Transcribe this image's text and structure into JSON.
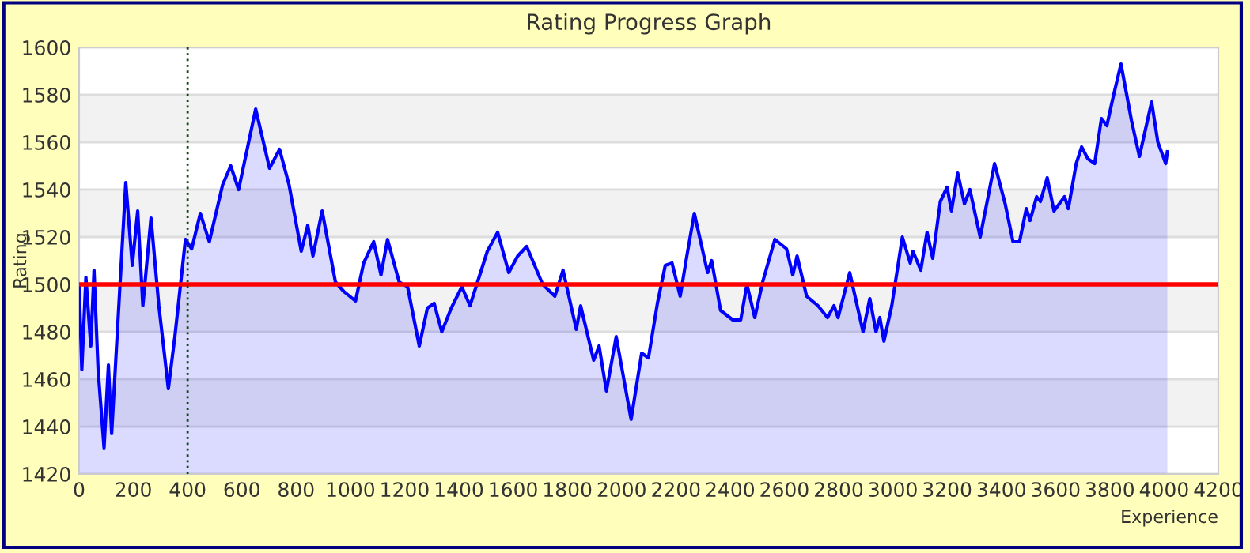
{
  "chart_data": {
    "type": "area",
    "title": "Rating Progress Graph",
    "xlabel": "Experience",
    "ylabel": "Rating",
    "series": [
      {
        "color": "#0000ff",
        "x": [
          0,
          10,
          25,
          43,
          55,
          70,
          92,
          108,
          120,
          141,
          172,
          196,
          216,
          235,
          265,
          294,
          329,
          353,
          392,
          415,
          447,
          480,
          529,
          559,
          588,
          651,
          702,
          739,
          774,
          819,
          843,
          862,
          896,
          945,
          976,
          1019,
          1049,
          1086,
          1113,
          1137,
          1180,
          1211,
          1254,
          1284,
          1309,
          1337,
          1372,
          1411,
          1441,
          1505,
          1543,
          1584,
          1617,
          1650,
          1709,
          1754,
          1784,
          1833,
          1849,
          1897,
          1917,
          1944,
          1980,
          2035,
          2074,
          2099,
          2132,
          2161,
          2186,
          2216,
          2239,
          2268,
          2317,
          2332,
          2365,
          2410,
          2439,
          2462,
          2491,
          2520,
          2565,
          2608,
          2631,
          2647,
          2682,
          2724,
          2759,
          2783,
          2798,
          2841,
          2890,
          2915,
          2938,
          2952,
          2967,
          2996,
          3035,
          3064,
          3074,
          3103,
          3126,
          3147,
          3175,
          3200,
          3216,
          3239,
          3264,
          3284,
          3322,
          3375,
          3414,
          3443,
          3467,
          3492,
          3506,
          3530,
          3544,
          3569,
          3594,
          3633,
          3647,
          3676,
          3696,
          3719,
          3744,
          3769,
          3789,
          3812,
          3841,
          3880,
          3909,
          3954,
          3977,
          4006,
          4012
        ],
        "values": [
          1500,
          1464,
          1503,
          1474,
          1506,
          1464,
          1431,
          1466,
          1437,
          1480,
          1543,
          1508,
          1531,
          1491,
          1528,
          1491,
          1456,
          1478,
          1519,
          1515,
          1530,
          1518,
          1542,
          1550,
          1540,
          1574,
          1549,
          1557,
          1542,
          1514,
          1525,
          1512,
          1531,
          1501,
          1497,
          1493,
          1509,
          1518,
          1504,
          1519,
          1501,
          1499,
          1474,
          1490,
          1492,
          1480,
          1490,
          1499,
          1491,
          1514,
          1522,
          1505,
          1512,
          1516,
          1500,
          1495,
          1506,
          1481,
          1491,
          1468,
          1474,
          1455,
          1478,
          1443,
          1471,
          1469,
          1492,
          1508,
          1509,
          1495,
          1511,
          1530,
          1505,
          1510,
          1489,
          1485,
          1485,
          1500,
          1486,
          1501,
          1519,
          1515,
          1504,
          1512,
          1495,
          1491,
          1486,
          1491,
          1486,
          1505,
          1480,
          1494,
          1480,
          1486,
          1476,
          1491,
          1520,
          1509,
          1514,
          1506,
          1522,
          1511,
          1535,
          1541,
          1531,
          1547,
          1534,
          1540,
          1520,
          1551,
          1534,
          1518,
          1518,
          1532,
          1527,
          1537,
          1535,
          1545,
          1531,
          1537,
          1532,
          1551,
          1558,
          1553,
          1551,
          1570,
          1567,
          1579,
          1593,
          1569,
          1554,
          1577,
          1560,
          1551,
          1556
        ]
      }
    ],
    "xlim": [
      0,
      4200
    ],
    "xticks": [
      0,
      200,
      400,
      600,
      800,
      1000,
      1200,
      1400,
      1600,
      1800,
      2000,
      2200,
      2400,
      2600,
      2800,
      3000,
      3200,
      3400,
      3600,
      3800,
      4000,
      4200
    ],
    "ylim": [
      1420,
      1600
    ],
    "yticks": [
      1420,
      1440,
      1460,
      1480,
      1500,
      1520,
      1540,
      1560,
      1580,
      1600
    ],
    "grid": "y",
    "ref_lines": [
      {
        "axis": "y",
        "value": 1500,
        "color": "#ff0000",
        "line_style": "solid"
      },
      {
        "axis": "x",
        "value": 400,
        "color": "#114411",
        "line_style": "dotted"
      }
    ]
  }
}
